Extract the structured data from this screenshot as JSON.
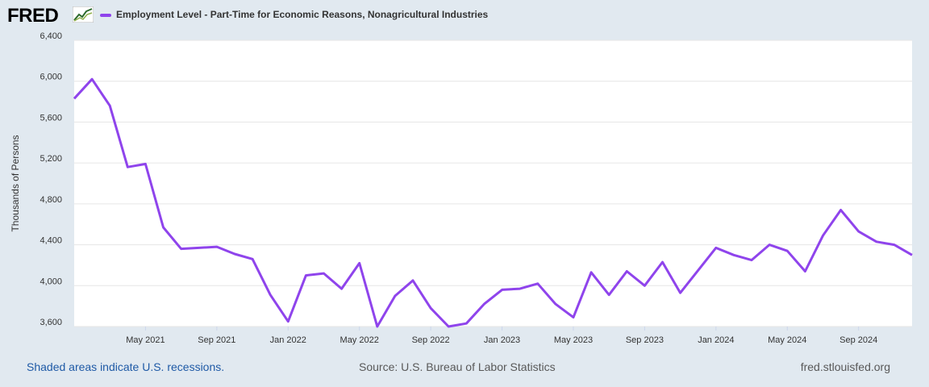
{
  "header": {
    "logo_text": "FRED",
    "logo_mark_icon": "chart-line-icon",
    "series_title": "Employment Level - Part-Time for Economic Reasons, Nonagricultural Industries",
    "series_color": "#8f44ec"
  },
  "footer": {
    "recession_note": "Shaded areas indicate U.S. recessions.",
    "source": "Source: U.S. Bureau of Labor Statistics",
    "site": "fred.stlouisfed.org"
  },
  "colors": {
    "page_background": "#e1e9f0",
    "plot_background": "#ffffff",
    "gridline": "#e6e6e6",
    "line": "#8f44ec"
  },
  "chart_data": {
    "type": "line",
    "title": "Employment Level - Part-Time for Economic Reasons, Nonagricultural Industries",
    "ylabel": "Thousands of Persons",
    "xlabel": "",
    "ylim": [
      3600,
      6400
    ],
    "yticks": [
      3600,
      4000,
      4400,
      4800,
      5200,
      5600,
      6000,
      6400
    ],
    "ytick_labels": [
      "3,600",
      "4,000",
      "4,400",
      "4,800",
      "5,200",
      "5,600",
      "6,000",
      "6,400"
    ],
    "xlim": [
      "2021-01",
      "2024-12"
    ],
    "xticks": [
      "2021-05",
      "2021-09",
      "2022-01",
      "2022-05",
      "2022-09",
      "2023-01",
      "2023-05",
      "2023-09",
      "2024-01",
      "2024-05",
      "2024-09"
    ],
    "xtick_labels": [
      "May 2021",
      "Sep 2021",
      "Jan 2022",
      "May 2022",
      "Sep 2022",
      "Jan 2023",
      "May 2023",
      "Sep 2023",
      "Jan 2024",
      "May 2024",
      "Sep 2024"
    ],
    "grid": true,
    "series": [
      {
        "name": "Employment Level - Part-Time for Economic Reasons, Nonagricultural Industries",
        "color": "#8f44ec",
        "x": [
          "2021-01",
          "2021-02",
          "2021-03",
          "2021-04",
          "2021-05",
          "2021-06",
          "2021-07",
          "2021-08",
          "2021-09",
          "2021-10",
          "2021-11",
          "2021-12",
          "2022-01",
          "2022-02",
          "2022-03",
          "2022-04",
          "2022-05",
          "2022-06",
          "2022-07",
          "2022-08",
          "2022-09",
          "2022-10",
          "2022-11",
          "2022-12",
          "2023-01",
          "2023-02",
          "2023-03",
          "2023-04",
          "2023-05",
          "2023-06",
          "2023-07",
          "2023-08",
          "2023-09",
          "2023-10",
          "2023-11",
          "2023-12",
          "2024-01",
          "2024-02",
          "2024-03",
          "2024-04",
          "2024-05",
          "2024-06",
          "2024-07",
          "2024-08",
          "2024-09",
          "2024-10",
          "2024-11",
          "2024-12"
        ],
        "values": [
          5830,
          6020,
          5760,
          5160,
          5190,
          4570,
          4360,
          4370,
          4380,
          4310,
          4260,
          3910,
          3650,
          4100,
          4120,
          3970,
          4220,
          3600,
          3900,
          4050,
          3780,
          3600,
          3630,
          3820,
          3960,
          3970,
          4020,
          3820,
          3690,
          4130,
          3910,
          4140,
          4000,
          4230,
          3930,
          4150,
          4370,
          4300,
          4250,
          4400,
          4340,
          4140,
          4490,
          4740,
          4530,
          4430,
          4400,
          4300
        ]
      }
    ]
  }
}
